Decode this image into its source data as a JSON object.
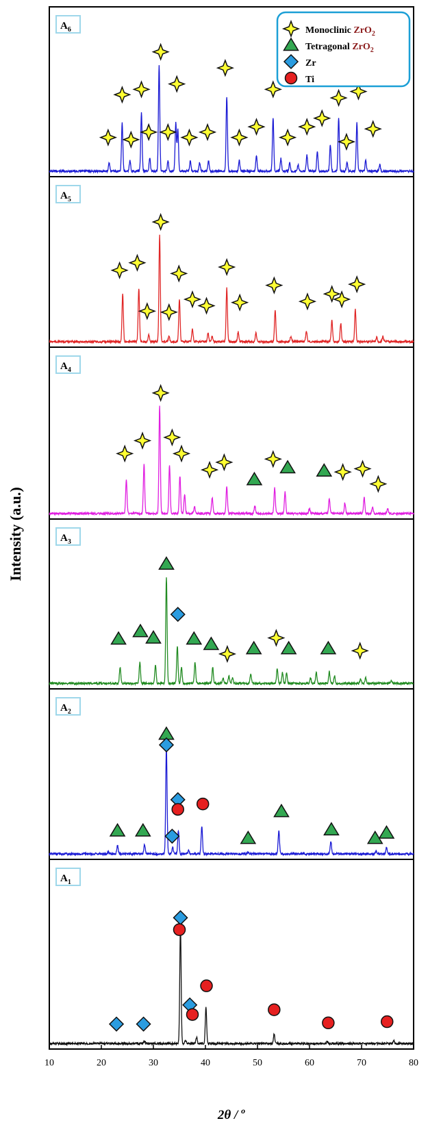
{
  "chart_data": {
    "type": "line",
    "title": "",
    "xlabel": "2θ / o",
    "ylabel": "Intensity (a.u.)",
    "xlim": [
      10,
      80
    ],
    "xticks": [
      "10",
      "20",
      "30",
      "40",
      "50",
      "60",
      "70",
      "80"
    ],
    "legend": {
      "placement": "top-right",
      "entries": [
        {
          "marker": "star-icon",
          "label": "Monoclinic",
          "formula_main": "ZrO",
          "formula_sub": "2",
          "marker_color": "#ffff33"
        },
        {
          "marker": "triangle-icon",
          "label": "Tetragonal",
          "formula_main": "ZrO",
          "formula_sub": "2",
          "marker_color": "#33a852"
        },
        {
          "marker": "diamond-icon",
          "label": "Zr",
          "marker_color": "#2a9ce0"
        },
        {
          "marker": "circle-icon",
          "label": "Ti",
          "marker_color": "#e62020"
        }
      ]
    },
    "panels": [
      {
        "label_main": "A",
        "label_sub": "6",
        "color": "#1a1ad4",
        "peaks": [
          [
            21.5,
            0.08
          ],
          [
            24,
            0.45
          ],
          [
            25.5,
            0.1
          ],
          [
            27.7,
            0.55
          ],
          [
            29.3,
            0.12
          ],
          [
            31.1,
            1.0
          ],
          [
            32.8,
            0.1
          ],
          [
            34.3,
            0.45
          ],
          [
            34.7,
            0.4
          ],
          [
            37.1,
            0.1
          ],
          [
            38.9,
            0.08
          ],
          [
            40.6,
            0.1
          ],
          [
            44.1,
            0.7
          ],
          [
            46.5,
            0.1
          ],
          [
            49.8,
            0.15
          ],
          [
            53,
            0.5
          ],
          [
            54.5,
            0.12
          ],
          [
            56.2,
            0.08
          ],
          [
            57.8,
            0.06
          ],
          [
            59.5,
            0.15
          ],
          [
            61.5,
            0.18
          ],
          [
            64,
            0.25
          ],
          [
            65.6,
            0.5
          ],
          [
            67.2,
            0.08
          ],
          [
            69.1,
            0.45
          ],
          [
            70.8,
            0.1
          ],
          [
            73.5,
            0.06
          ]
        ],
        "markers": [
          [
            "star",
            21.3,
            0.2
          ],
          [
            "star",
            24,
            0.6
          ],
          [
            "star",
            25.7,
            0.18
          ],
          [
            "star",
            27.7,
            0.65
          ],
          [
            "star",
            29.1,
            0.25
          ],
          [
            "star",
            31.4,
            1.0
          ],
          [
            "star",
            32.8,
            0.25
          ],
          [
            "star",
            34.5,
            0.7
          ],
          [
            "star",
            36.9,
            0.2
          ],
          [
            "star",
            40.4,
            0.25
          ],
          [
            "star",
            43.8,
            0.85
          ],
          [
            "star",
            46.5,
            0.2
          ],
          [
            "star",
            49.8,
            0.3
          ],
          [
            "star",
            53,
            0.65
          ],
          [
            "star",
            55.8,
            0.2
          ],
          [
            "star",
            59.5,
            0.3
          ],
          [
            "star",
            62.4,
            0.38
          ],
          [
            "star",
            65.6,
            0.57
          ],
          [
            "star",
            67.1,
            0.16
          ],
          [
            "star",
            69.4,
            0.63
          ],
          [
            "star",
            72.2,
            0.28
          ]
        ]
      },
      {
        "label_main": "A",
        "label_sub": "5",
        "color": "#e02626",
        "peaks": [
          [
            24.1,
            0.45
          ],
          [
            27.2,
            0.5
          ],
          [
            29.1,
            0.07
          ],
          [
            31.2,
            1.0
          ],
          [
            33,
            0.05
          ],
          [
            35,
            0.4
          ],
          [
            37.5,
            0.12
          ],
          [
            40.5,
            0.08
          ],
          [
            41.3,
            0.05
          ],
          [
            44.1,
            0.5
          ],
          [
            46.3,
            0.09
          ],
          [
            49.7,
            0.08
          ],
          [
            53.4,
            0.3
          ],
          [
            56.4,
            0.05
          ],
          [
            59.4,
            0.1
          ],
          [
            64.3,
            0.2
          ],
          [
            66,
            0.17
          ],
          [
            68.8,
            0.3
          ],
          [
            72.9,
            0.04
          ],
          [
            74.1,
            0.05
          ]
        ],
        "markers": [
          [
            "star",
            23.5,
            0.55
          ],
          [
            "star",
            26.9,
            0.62
          ],
          [
            "star",
            28.8,
            0.17
          ],
          [
            "star",
            31.4,
            1.0
          ],
          [
            "star",
            33,
            0.16
          ],
          [
            "star",
            34.9,
            0.52
          ],
          [
            "star",
            37.5,
            0.28
          ],
          [
            "star",
            40.2,
            0.22
          ],
          [
            "star",
            44.1,
            0.58
          ],
          [
            "star",
            46.6,
            0.25
          ],
          [
            "star",
            53.2,
            0.41
          ],
          [
            "star",
            59.6,
            0.26
          ],
          [
            "star",
            64.3,
            0.33
          ],
          [
            "star",
            66.2,
            0.28
          ],
          [
            "star",
            69.1,
            0.42
          ]
        ]
      },
      {
        "label_main": "A",
        "label_sub": "4",
        "color": "#e01ee0",
        "peaks": [
          [
            24.8,
            0.32
          ],
          [
            28.2,
            0.46
          ],
          [
            31.2,
            1.0
          ],
          [
            33.1,
            0.45
          ],
          [
            35.1,
            0.35
          ],
          [
            36,
            0.18
          ],
          [
            37.9,
            0.06
          ],
          [
            41.3,
            0.15
          ],
          [
            44.1,
            0.25
          ],
          [
            49.5,
            0.07
          ],
          [
            53.3,
            0.24
          ],
          [
            55.3,
            0.2
          ],
          [
            60,
            0.05
          ],
          [
            63.8,
            0.14
          ],
          [
            66.8,
            0.1
          ],
          [
            70.5,
            0.15
          ],
          [
            72.1,
            0.06
          ],
          [
            75,
            0.05
          ]
        ],
        "markers": [
          [
            "star",
            24.5,
            0.44
          ],
          [
            "star",
            27.9,
            0.56
          ],
          [
            "star",
            31.4,
            1.0
          ],
          [
            "star",
            33.6,
            0.59
          ],
          [
            "star",
            35.4,
            0.44
          ],
          [
            "star",
            40.8,
            0.29
          ],
          [
            "star",
            43.6,
            0.36
          ],
          [
            "triangle",
            49.4,
            0.2
          ],
          [
            "star",
            53,
            0.39
          ],
          [
            "triangle",
            55.8,
            0.31
          ],
          [
            "triangle",
            62.8,
            0.28
          ],
          [
            "star",
            66.4,
            0.27
          ],
          [
            "star",
            70.2,
            0.3
          ],
          [
            "star",
            73.2,
            0.16
          ]
        ]
      },
      {
        "label_main": "A",
        "label_sub": "3",
        "color": "#228b22",
        "peaks": [
          [
            23.6,
            0.15
          ],
          [
            27.4,
            0.2
          ],
          [
            30.4,
            0.17
          ],
          [
            32.5,
            1.0
          ],
          [
            34.6,
            0.35
          ],
          [
            35.4,
            0.15
          ],
          [
            38,
            0.2
          ],
          [
            41.4,
            0.15
          ],
          [
            43.4,
            0.05
          ],
          [
            44.5,
            0.07
          ],
          [
            45.2,
            0.05
          ],
          [
            48.7,
            0.09
          ],
          [
            53.8,
            0.14
          ],
          [
            54.8,
            0.1
          ],
          [
            55.6,
            0.1
          ],
          [
            60.2,
            0.05
          ],
          [
            61.3,
            0.1
          ],
          [
            63.8,
            0.11
          ],
          [
            64.8,
            0.07
          ],
          [
            69.8,
            0.04
          ],
          [
            70.8,
            0.05
          ],
          [
            75.7,
            0.03
          ]
        ],
        "markers": [
          [
            "triangle",
            23.3,
            0.3
          ],
          [
            "triangle",
            27.5,
            0.37
          ],
          [
            "triangle",
            30,
            0.31
          ],
          [
            "triangle",
            32.5,
            1.0
          ],
          [
            "diamond",
            34.7,
            0.53
          ],
          [
            "triangle",
            37.8,
            0.3
          ],
          [
            "triangle",
            41.1,
            0.25
          ],
          [
            "star",
            44.2,
            0.16
          ],
          [
            "triangle",
            49.3,
            0.21
          ],
          [
            "star",
            53.6,
            0.31
          ],
          [
            "triangle",
            56,
            0.21
          ],
          [
            "triangle",
            63.6,
            0.21
          ],
          [
            "star",
            69.7,
            0.19
          ]
        ]
      },
      {
        "label_main": "A",
        "label_sub": "2",
        "color": "#1a1ad4",
        "peaks": [
          [
            21.3,
            0.02
          ],
          [
            23.1,
            0.08
          ],
          [
            28.3,
            0.09
          ],
          [
            32.5,
            1.0
          ],
          [
            33.7,
            0.06
          ],
          [
            34.8,
            0.22
          ],
          [
            36.8,
            0.03
          ],
          [
            39.3,
            0.26
          ],
          [
            48.2,
            0.02
          ],
          [
            54.1,
            0.22
          ],
          [
            64.1,
            0.12
          ],
          [
            72.8,
            0.03
          ],
          [
            74.8,
            0.06
          ]
        ],
        "markers": [
          [
            "triangle",
            23.1,
            0.1
          ],
          [
            "triangle",
            28,
            0.1
          ],
          [
            "triangle",
            32.5,
            1.0
          ],
          [
            "diamond",
            32.5,
            0.9
          ],
          [
            "diamond",
            33.6,
            0.05
          ],
          [
            "diamond",
            34.7,
            0.39
          ],
          [
            "circle",
            34.7,
            0.3
          ],
          [
            "circle",
            39.5,
            0.35
          ],
          [
            "triangle",
            48.2,
            0.03
          ],
          [
            "triangle",
            54.6,
            0.28
          ],
          [
            "triangle",
            64.2,
            0.11
          ],
          [
            "triangle",
            72.6,
            0.03
          ],
          [
            "triangle",
            74.8,
            0.08
          ]
        ]
      },
      {
        "label_main": "A",
        "label_sub": "1",
        "color": "#111111",
        "peaks": [
          [
            28.3,
            0.02
          ],
          [
            35.2,
            1.0
          ],
          [
            36.2,
            0.03
          ],
          [
            38.3,
            0.05
          ],
          [
            40.1,
            0.3
          ],
          [
            53.2,
            0.08
          ],
          [
            63.4,
            0.02
          ],
          [
            76.2,
            0.02
          ]
        ],
        "markers": [
          [
            "diamond",
            22.9,
            0.06
          ],
          [
            "diamond",
            28.1,
            0.06
          ],
          [
            "diamond",
            35.2,
            0.95
          ],
          [
            "circle",
            35,
            0.85
          ],
          [
            "diamond",
            37,
            0.22
          ],
          [
            "circle",
            37.5,
            0.14
          ],
          [
            "circle",
            40.2,
            0.38
          ],
          [
            "circle",
            53.2,
            0.18
          ],
          [
            "circle",
            63.6,
            0.07
          ],
          [
            "circle",
            74.9,
            0.08
          ]
        ]
      }
    ]
  }
}
